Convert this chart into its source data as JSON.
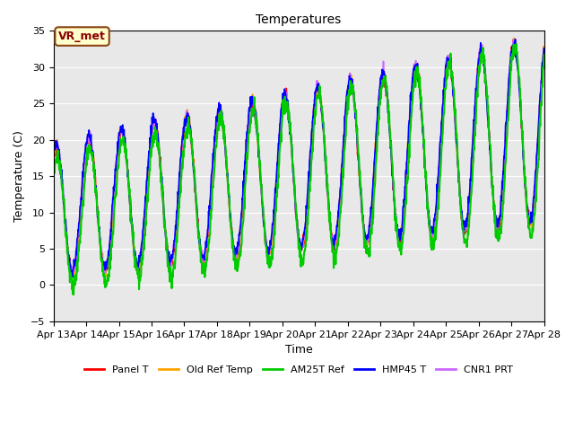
{
  "title": "Temperatures",
  "xlabel": "Time",
  "ylabel": "Temperature (C)",
  "ylim": [
    -5,
    35
  ],
  "xlim": [
    0,
    15
  ],
  "x_tick_labels": [
    "Apr 13",
    "Apr 14",
    "Apr 15",
    "Apr 16",
    "Apr 17",
    "Apr 18",
    "Apr 19",
    "Apr 20",
    "Apr 21",
    "Apr 22",
    "Apr 23",
    "Apr 24",
    "Apr 25",
    "Apr 26",
    "Apr 27",
    "Apr 28"
  ],
  "annotation_text": "VR_met",
  "annotation_color": "#8B0000",
  "annotation_bg": "#FFFFCC",
  "bg_color": "#E8E8E8",
  "series": {
    "Panel_T": {
      "color": "#FF0000",
      "lw": 1.2,
      "label": "Panel T"
    },
    "Old_Ref_Temp": {
      "color": "#FFA500",
      "lw": 1.2,
      "label": "Old Ref Temp"
    },
    "AM25T_Ref": {
      "color": "#00CC00",
      "lw": 1.5,
      "label": "AM25T Ref"
    },
    "HMP45_T": {
      "color": "#0000FF",
      "lw": 1.2,
      "label": "HMP45 T"
    },
    "CNR1_PRT": {
      "color": "#CC66FF",
      "lw": 1.2,
      "label": "CNR1 PRT"
    }
  },
  "n_points": 1440,
  "days": 15
}
